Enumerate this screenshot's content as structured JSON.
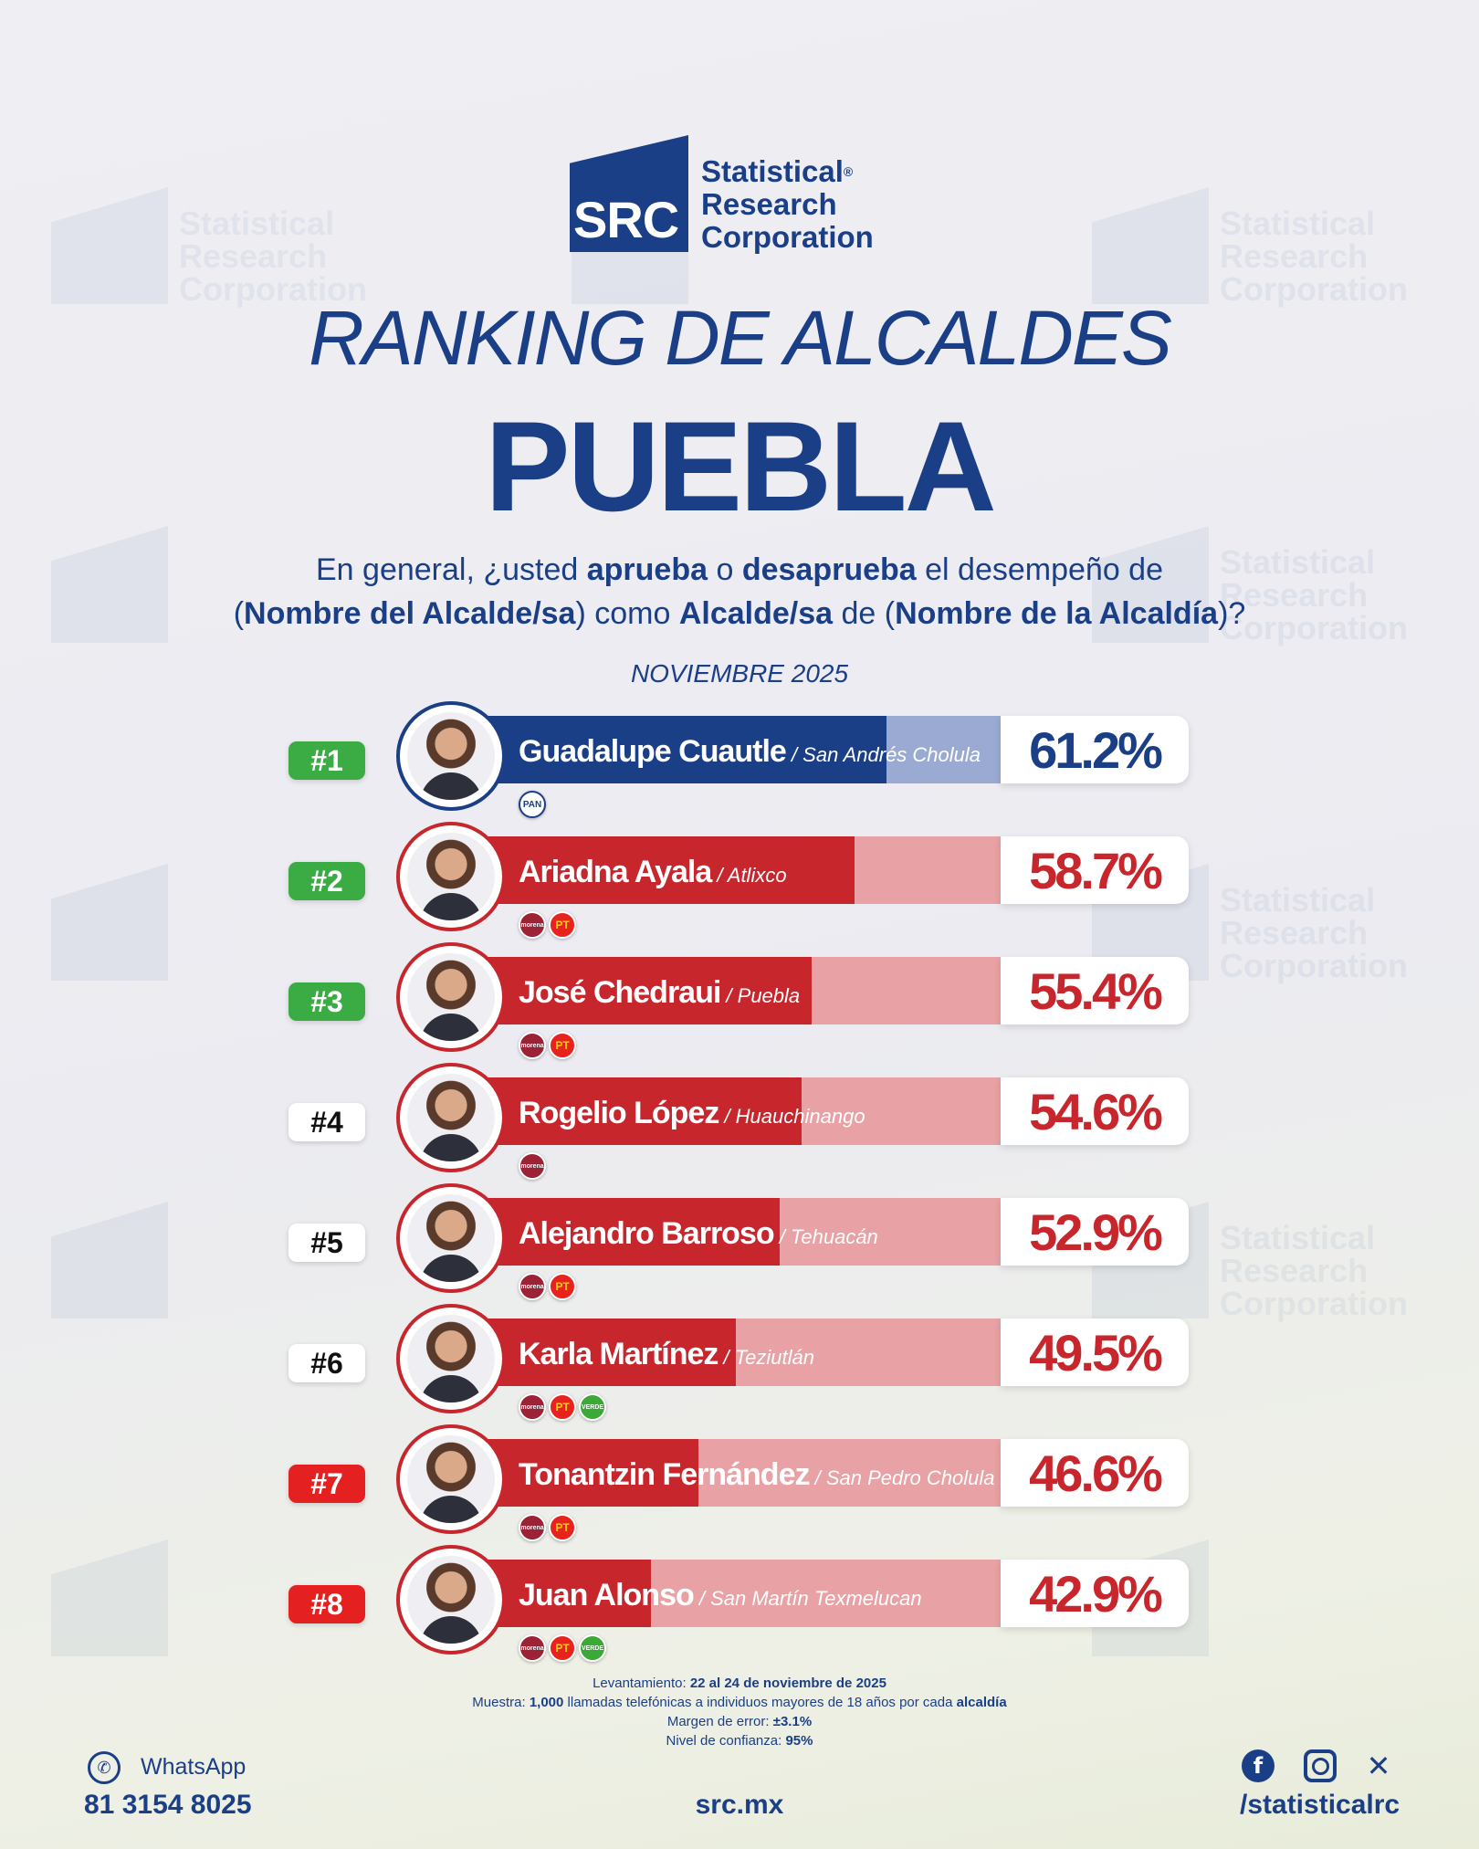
{
  "logo": {
    "abbr": "SRC",
    "name_lines": [
      "Statistical",
      "Research",
      "Corporation"
    ],
    "registered": "®"
  },
  "title_italic": "RANKING DE ALCALDES",
  "title_main": "PUEBLA",
  "question": {
    "p1": "En general, ¿usted ",
    "b1": "aprueba",
    "p2": " o ",
    "b2": "desaprueba",
    "p3": " el desempeño de",
    "p4": "(",
    "b3": "Nombre del Alcalde/sa",
    "p5": ") como ",
    "b4": "Alcalde/sa",
    "p6": " de (",
    "b5": "Nombre de la Alcaldía",
    "p7": ")?"
  },
  "date_label": "NOVIEMBRE 2025",
  "colors": {
    "navy": "#1b3f86",
    "red": "#c8262d",
    "green": "#3bab44",
    "rank_red": "#e42020"
  },
  "chart_data": {
    "type": "bar",
    "title": "RANKING DE ALCALDES",
    "categories": [
      "Guadalupe Cuautle",
      "Ariadna Ayala",
      "José Chedraui",
      "Rogelio López",
      "Alejandro Barroso",
      "Karla Martínez",
      "Tonantzin Fernández",
      "Juan Alonso"
    ],
    "values": [
      61.2,
      58.7,
      55.4,
      54.6,
      52.9,
      49.5,
      46.6,
      42.9
    ],
    "unit": "%",
    "ylim": [
      0,
      100
    ]
  },
  "rows": [
    {
      "rank": "#1",
      "rank_style": "green",
      "name": "Guadalupe Cuautle",
      "muni": " / San Andrés Cholula",
      "value": 61.2,
      "pct": "61.2%",
      "color": "navy",
      "parties": [
        {
          "key": "pan",
          "label": "PAN"
        }
      ]
    },
    {
      "rank": "#2",
      "rank_style": "green",
      "name": "Ariadna Ayala",
      "muni": " / Atlixco",
      "value": 58.7,
      "pct": "58.7%",
      "color": "red",
      "parties": [
        {
          "key": "morena",
          "label": "morena"
        },
        {
          "key": "pt",
          "label": "PT"
        }
      ]
    },
    {
      "rank": "#3",
      "rank_style": "green",
      "name": "José Chedraui",
      "muni": " / Puebla",
      "value": 55.4,
      "pct": "55.4%",
      "color": "red",
      "parties": [
        {
          "key": "morena",
          "label": "morena"
        },
        {
          "key": "pt",
          "label": "PT"
        }
      ]
    },
    {
      "rank": "#4",
      "rank_style": "white",
      "name": "Rogelio López",
      "muni": " / Huauchinango",
      "value": 54.6,
      "pct": "54.6%",
      "color": "red",
      "parties": [
        {
          "key": "morena",
          "label": "morena"
        }
      ]
    },
    {
      "rank": "#5",
      "rank_style": "white",
      "name": "Alejandro Barroso",
      "muni": " / Tehuacán",
      "value": 52.9,
      "pct": "52.9%",
      "color": "red",
      "parties": [
        {
          "key": "morena",
          "label": "morena"
        },
        {
          "key": "pt",
          "label": "PT"
        }
      ]
    },
    {
      "rank": "#6",
      "rank_style": "white",
      "name": "Karla Martínez",
      "muni": " / Teziutlán",
      "value": 49.5,
      "pct": "49.5%",
      "color": "red",
      "parties": [
        {
          "key": "morena",
          "label": "morena"
        },
        {
          "key": "pt",
          "label": "PT"
        },
        {
          "key": "verde",
          "label": "VERDE"
        }
      ]
    },
    {
      "rank": "#7",
      "rank_style": "red",
      "name": "Tonantzin Fernández",
      "muni": " / San Pedro Cholula",
      "value": 46.6,
      "pct": "46.6%",
      "color": "red",
      "parties": [
        {
          "key": "morena",
          "label": "morena"
        },
        {
          "key": "pt",
          "label": "PT"
        }
      ]
    },
    {
      "rank": "#8",
      "rank_style": "red",
      "name": "Juan Alonso",
      "muni": " / San Martín Texmelucan",
      "value": 42.9,
      "pct": "42.9%",
      "color": "red",
      "parties": [
        {
          "key": "morena",
          "label": "morena"
        },
        {
          "key": "pt",
          "label": "PT"
        },
        {
          "key": "verde",
          "label": "VERDE"
        }
      ]
    }
  ],
  "footnote": {
    "l1_label": "Levantamiento: ",
    "l1_value": "22 al 24 de noviembre de 2025",
    "l2_label": "Muestra: ",
    "l2_value": "1,000",
    "l2_text": " llamadas telefónicas a individuos mayores de 18 años por cada ",
    "l2_bold": "alcaldía",
    "l3_label": "Margen de error: ",
    "l3_value": "±3.1%",
    "l4_label": "Nivel de confianza: ",
    "l4_value": "95%"
  },
  "footer": {
    "whatsapp_label": "WhatsApp",
    "whatsapp_number": "81 3154 8025",
    "website": "src.mx",
    "social_handle": "/statisticalrc",
    "icons": [
      "whatsapp-icon",
      "facebook-icon",
      "instagram-icon",
      "x-icon"
    ]
  }
}
